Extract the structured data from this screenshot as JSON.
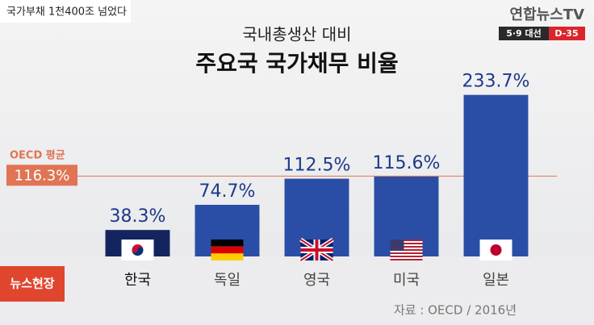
{
  "caption": "국가부채 1천400조 넘었다",
  "logo": "연합뉴스TV",
  "badge": {
    "left": "5·9 대선",
    "right": "D-35"
  },
  "program": "뉴스현장",
  "source": "자료 : OECD / 2016년",
  "chart_data": {
    "type": "bar",
    "subtitle": "국내총생산 대비",
    "title": "주요국 국가채무 비율",
    "categories": [
      "한국",
      "독일",
      "영국",
      "미국",
      "일본"
    ],
    "values": [
      38.3,
      74.7,
      112.5,
      115.6,
      233.7
    ],
    "value_labels": [
      "38.3%",
      "74.7%",
      "112.5%",
      "115.6%",
      "233.7%"
    ],
    "colors": [
      "#14245e",
      "#2a4ea6",
      "#2a4ea6",
      "#2a4ea6",
      "#2a4ea6"
    ],
    "ylim": [
      0,
      280
    ],
    "reference_line": {
      "label": "OECD 평균",
      "value": 116.3,
      "value_label": "116.3%",
      "color": "#e07454"
    }
  }
}
